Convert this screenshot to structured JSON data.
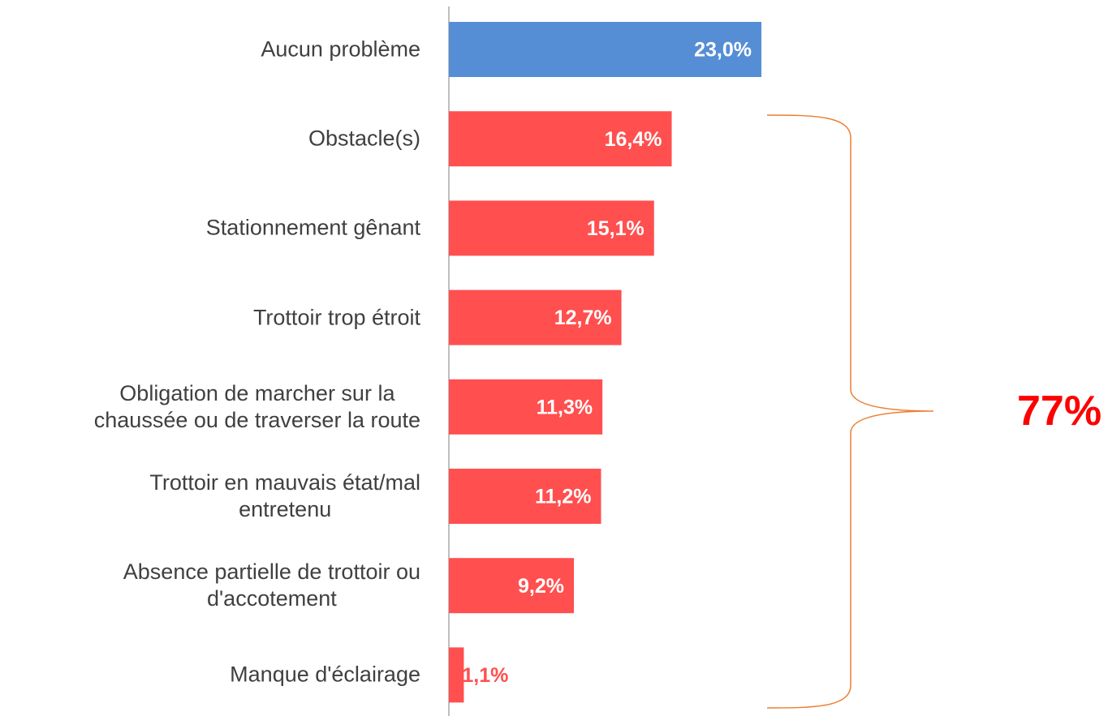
{
  "chart_data": {
    "type": "bar",
    "orientation": "horizontal",
    "categories": [
      "Aucun problème",
      "Obstacle(s)",
      "Stationnement gênant",
      "Trottoir trop étroit",
      "Obligation de marcher sur la\nchaussée ou de traverser la route",
      "Trottoir en mauvais état/mal\nentretenu",
      "Absence partielle de trottoir ou\nd'accotement",
      "Manque d'éclairage"
    ],
    "values": [
      23.0,
      16.4,
      15.1,
      12.7,
      11.3,
      11.2,
      9.2,
      1.1
    ],
    "value_labels": [
      "23,0%",
      "16,4%",
      "15,1%",
      "12,7%",
      "11,3%",
      "11,2%",
      "9,2%",
      "1,1%"
    ],
    "colors": [
      "#558ed5",
      "#ff4f4f",
      "#ff4f4f",
      "#ff4f4f",
      "#ff4f4f",
      "#ff4f4f",
      "#ff4f4f",
      "#ff4f4f"
    ],
    "annotation": "77%"
  }
}
